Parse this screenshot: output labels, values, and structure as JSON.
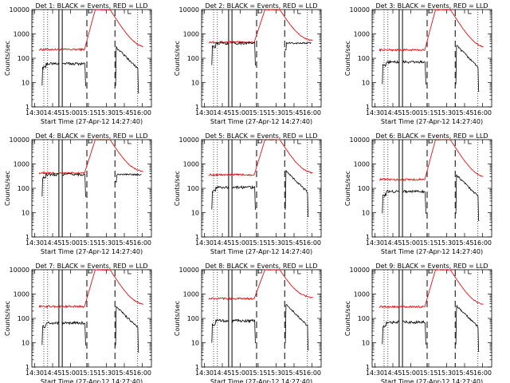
{
  "chart_data": [
    {
      "type": "line",
      "title": "Det  1: BLACK = Events, RED = LLD",
      "ylabel": "Counts/sec",
      "xlabel": "Start Time (27-Apr-12 14:27:40)",
      "x_ticks": [
        "14:30",
        "14:45",
        "15:00",
        "15:15",
        "15:30",
        "15:45",
        "16:00"
      ],
      "y_ticks": [
        "1",
        "10",
        "100",
        "1000",
        "10000"
      ],
      "y_scale": "log",
      "ylim": [
        1,
        10000
      ],
      "series": [
        {
          "name": "Events",
          "color": "#000000",
          "base": 60
        },
        {
          "name": "LLD",
          "color": "#e01010",
          "base": 230
        }
      ]
    },
    {
      "type": "line",
      "title": "Det  2: BLACK = Events, RED = LLD",
      "ylabel": "Counts/sec",
      "xlabel": "Start Time (27-Apr-12 14:27:40)",
      "x_ticks": [
        "14:30",
        "14:45",
        "15:00",
        "15:15",
        "15:30",
        "15:45",
        "16:00"
      ],
      "y_ticks": [
        "1",
        "10",
        "100",
        "1000",
        "10000"
      ],
      "y_scale": "log",
      "ylim": [
        1,
        10000
      ],
      "series": [
        {
          "name": "Events",
          "color": "#000000",
          "base": 420
        },
        {
          "name": "LLD",
          "color": "#e01010",
          "base": 460
        }
      ]
    },
    {
      "type": "line",
      "title": "Det  3: BLACK = Events, RED = LLD",
      "ylabel": "Counts/sec",
      "xlabel": "Start Time (27-Apr-12 14:27:40)",
      "x_ticks": [
        "14:30",
        "14:45",
        "15:00",
        "15:15",
        "15:30",
        "15:45",
        "16:00"
      ],
      "y_ticks": [
        "1",
        "10",
        "100",
        "1000",
        "10000"
      ],
      "y_scale": "log",
      "ylim": [
        1,
        10000
      ],
      "series": [
        {
          "name": "Events",
          "color": "#000000",
          "base": 70
        },
        {
          "name": "LLD",
          "color": "#e01010",
          "base": 220
        }
      ]
    },
    {
      "type": "line",
      "title": "Det  4: BLACK = Events, RED = LLD",
      "ylabel": "Counts/sec",
      "xlabel": "Start Time (27-Apr-12 14:27:40)",
      "x_ticks": [
        "14:30",
        "14:45",
        "15:00",
        "15:15",
        "15:30",
        "15:45",
        "16:00"
      ],
      "y_ticks": [
        "1",
        "10",
        "100",
        "1000",
        "10000"
      ],
      "y_scale": "log",
      "ylim": [
        1,
        10000
      ],
      "series": [
        {
          "name": "Events",
          "color": "#000000",
          "base": 370
        },
        {
          "name": "LLD",
          "color": "#e01010",
          "base": 420
        }
      ]
    },
    {
      "type": "line",
      "title": "Det  5: BLACK = Events, RED = LLD",
      "ylabel": "Counts/sec",
      "xlabel": "Start Time (27-Apr-12 14:27:40)",
      "x_ticks": [
        "14:30",
        "14:45",
        "15:00",
        "15:15",
        "15:30",
        "15:45",
        "16:00"
      ],
      "y_ticks": [
        "1",
        "10",
        "100",
        "1000",
        "10000"
      ],
      "y_scale": "log",
      "ylim": [
        1,
        10000
      ],
      "series": [
        {
          "name": "Events",
          "color": "#000000",
          "base": 110
        },
        {
          "name": "LLD",
          "color": "#e01010",
          "base": 360
        }
      ]
    },
    {
      "type": "line",
      "title": "Det  6: BLACK = Events, RED = LLD",
      "ylabel": "Counts/sec",
      "xlabel": "Start Time (27-Apr-12 14:27:40)",
      "x_ticks": [
        "14:30",
        "14:45",
        "15:00",
        "15:15",
        "15:30",
        "15:45",
        "16:00"
      ],
      "y_ticks": [
        "1",
        "10",
        "100",
        "1000",
        "10000"
      ],
      "y_scale": "log",
      "ylim": [
        1,
        10000
      ],
      "series": [
        {
          "name": "Events",
          "color": "#000000",
          "base": 75
        },
        {
          "name": "LLD",
          "color": "#e01010",
          "base": 230
        }
      ]
    },
    {
      "type": "line",
      "title": "Det  7: BLACK = Events, RED = LLD",
      "ylabel": "Counts/sec",
      "xlabel": "Start Time (27-Apr-12 14:27:40)",
      "x_ticks": [
        "14:30",
        "14:45",
        "15:00",
        "15:15",
        "15:30",
        "15:45",
        "16:00"
      ],
      "y_ticks": [
        "1",
        "10",
        "100",
        "1000",
        "10000"
      ],
      "y_scale": "log",
      "ylim": [
        1,
        10000
      ],
      "series": [
        {
          "name": "Events",
          "color": "#000000",
          "base": 65
        },
        {
          "name": "LLD",
          "color": "#e01010",
          "base": 310
        }
      ]
    },
    {
      "type": "line",
      "title": "Det  8: BLACK = Events, RED = LLD",
      "ylabel": "Counts/sec",
      "xlabel": "Start Time (27-Apr-12 14:27:40)",
      "x_ticks": [
        "14:30",
        "14:45",
        "15:00",
        "15:15",
        "15:30",
        "15:45",
        "16:00"
      ],
      "y_ticks": [
        "1",
        "10",
        "100",
        "1000",
        "10000"
      ],
      "y_scale": "log",
      "ylim": [
        1,
        10000
      ],
      "series": [
        {
          "name": "Events",
          "color": "#000000",
          "base": 80
        },
        {
          "name": "LLD",
          "color": "#e01010",
          "base": 650
        }
      ]
    },
    {
      "type": "line",
      "title": "Det  9: BLACK = Events, RED = LLD",
      "ylabel": "Counts/sec",
      "xlabel": "Start Time (27-Apr-12 14:27:40)",
      "x_ticks": [
        "14:30",
        "14:45",
        "15:00",
        "15:15",
        "15:30",
        "15:45",
        "16:00"
      ],
      "y_ticks": [
        "1",
        "10",
        "100",
        "1000",
        "10000"
      ],
      "y_scale": "log",
      "ylim": [
        1,
        10000
      ],
      "series": [
        {
          "name": "Events",
          "color": "#000000",
          "base": 70
        },
        {
          "name": "LLD",
          "color": "#e01010",
          "base": 300
        }
      ]
    }
  ]
}
